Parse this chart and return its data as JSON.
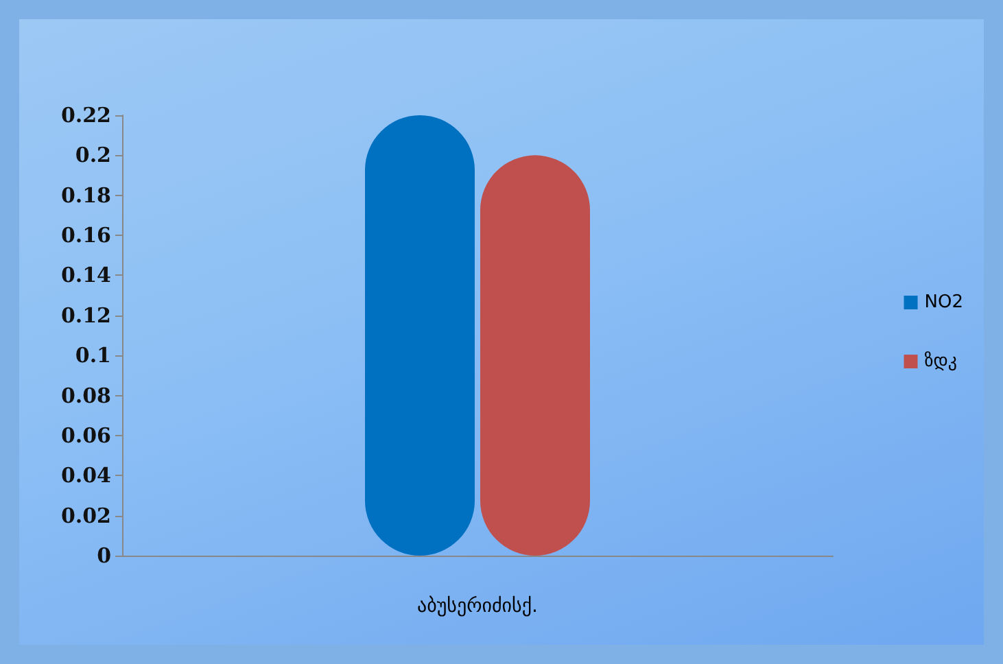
{
  "chart_data": {
    "type": "bar",
    "categories": [
      "აბუსერიძისქ."
    ],
    "series": [
      {
        "name": "NO2",
        "color": "#0070c0",
        "values": [
          0.22
        ]
      },
      {
        "name": "ზდკ",
        "color": "#c0504d",
        "values": [
          0.2
        ]
      }
    ],
    "ylim": [
      0,
      0.22
    ],
    "yticks": [
      0,
      0.02,
      0.04,
      0.06,
      0.08,
      0.1,
      0.12,
      0.14,
      0.16,
      0.18,
      0.2,
      0.22
    ],
    "grid": false,
    "legend": "right"
  }
}
